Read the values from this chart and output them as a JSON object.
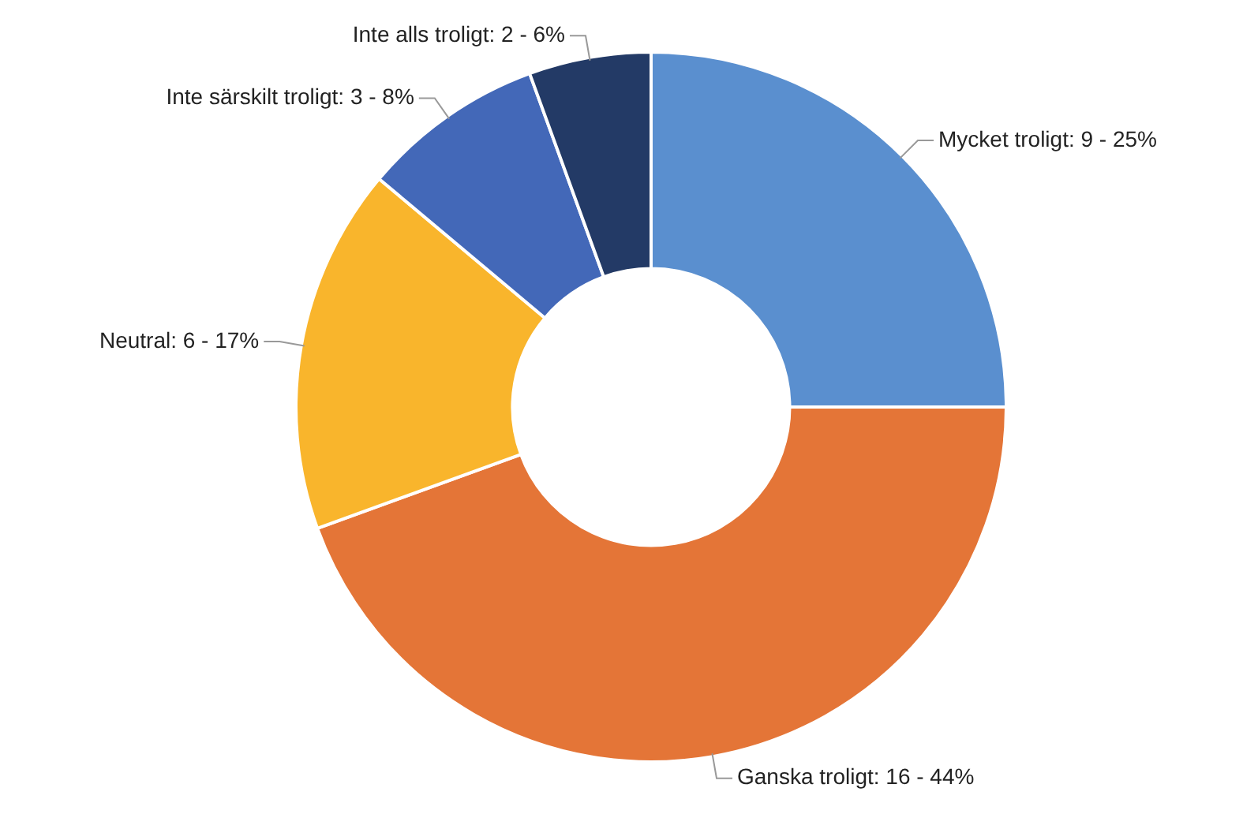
{
  "chart_data": {
    "type": "donut",
    "categories": [
      "Mycket troligt",
      "Ganska troligt",
      "Neutral",
      "Inte särskilt troligt",
      "Inte alls troligt"
    ],
    "values": [
      9,
      16,
      6,
      3,
      2
    ],
    "value_labels": [
      "9 - 25%",
      "16 - 44%",
      "6 - 17%",
      "3 - 8%",
      "2 - 6%"
    ],
    "colors": [
      "#5a8fcf",
      "#e47537",
      "#f9b52c",
      "#4368b8",
      "#233a66"
    ],
    "legend": false
  }
}
